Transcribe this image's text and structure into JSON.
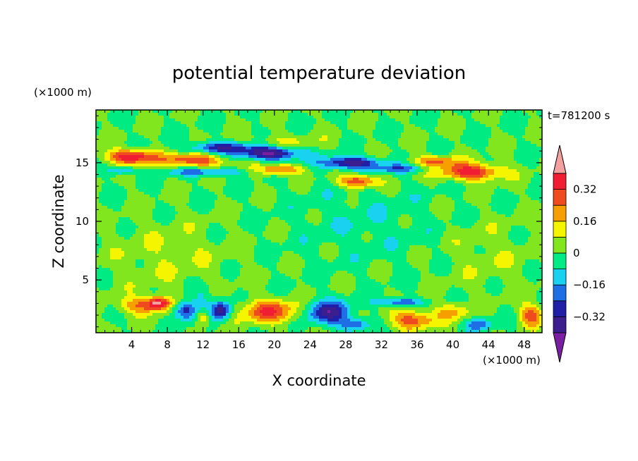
{
  "chart_data": {
    "type": "heatmap",
    "title": "potential temperature deviation",
    "xlabel": "X coordinate",
    "ylabel": "Z coordinate",
    "x_unit": "(×1000 m)",
    "y_unit": "(×1000 m)",
    "time_label": "t=781200 s",
    "xlim": [
      0,
      50
    ],
    "ylim": [
      0.5,
      19.5
    ],
    "x_ticks": [
      4,
      8,
      12,
      16,
      20,
      24,
      28,
      32,
      36,
      40,
      44,
      48
    ],
    "y_ticks": [
      5,
      10,
      15
    ],
    "colorbar": {
      "levels": [
        -0.4,
        -0.32,
        -0.24,
        -0.16,
        -0.08,
        0,
        0.08,
        0.16,
        0.24,
        0.32,
        0.4
      ],
      "tick_labels": [
        "0.32",
        "0.16",
        "0",
        "−0.16",
        "−0.32"
      ],
      "tick_values": [
        0.32,
        0.16,
        0,
        -0.16,
        -0.32
      ],
      "colors": [
        "#7a1fa2",
        "#3c1e8f",
        "#1f1fa8",
        "#1e6ee6",
        "#19d2f0",
        "#00eb82",
        "#82e61e",
        "#f5f500",
        "#f5a000",
        "#f04b1e",
        "#f01e32",
        "#f5a0a0"
      ],
      "extend": "both"
    },
    "features": [
      {
        "x": 4,
        "z": 15.5,
        "sx": 2.8,
        "sz": 0.6,
        "amp": 0.42
      },
      {
        "x": 11,
        "z": 15.2,
        "sx": 3.2,
        "sz": 0.55,
        "amp": 0.34
      },
      {
        "x": 20.5,
        "z": 14.4,
        "sx": 2.5,
        "sz": 0.45,
        "amp": 0.3
      },
      {
        "x": 29.5,
        "z": 13.4,
        "sx": 2.2,
        "sz": 0.55,
        "amp": 0.36
      },
      {
        "x": 42,
        "z": 14.2,
        "sx": 3.5,
        "sz": 0.7,
        "amp": 0.38
      },
      {
        "x": 38,
        "z": 15.1,
        "sx": 2.5,
        "sz": 0.5,
        "amp": 0.26
      },
      {
        "x": 14,
        "z": 16.3,
        "sx": 3.5,
        "sz": 0.5,
        "amp": -0.3
      },
      {
        "x": 19.5,
        "z": 15.8,
        "sx": 3.2,
        "sz": 0.55,
        "amp": -0.42
      },
      {
        "x": 28.5,
        "z": 15.0,
        "sx": 3.2,
        "sz": 0.5,
        "amp": -0.38
      },
      {
        "x": 34,
        "z": 14.5,
        "sx": 3.5,
        "sz": 0.35,
        "amp": -0.2
      },
      {
        "x": 3,
        "z": 14.3,
        "sx": 1.6,
        "sz": 0.35,
        "amp": -0.2
      },
      {
        "x": 12,
        "z": 14.2,
        "sx": 4.5,
        "sz": 0.35,
        "amp": -0.2
      },
      {
        "x": 21,
        "z": 16.8,
        "sx": 4.5,
        "sz": 0.6,
        "amp": 0.09
      },
      {
        "x": 7,
        "z": 3.0,
        "sx": 1.4,
        "sz": 0.6,
        "amp": 0.42
      },
      {
        "x": 4.5,
        "z": 2.8,
        "sx": 2.0,
        "sz": 0.7,
        "amp": 0.22
      },
      {
        "x": 10,
        "z": 2.4,
        "sx": 1.3,
        "sz": 0.8,
        "amp": -0.32
      },
      {
        "x": 14,
        "z": 2.4,
        "sx": 1.1,
        "sz": 0.8,
        "amp": -0.4
      },
      {
        "x": 12,
        "z": 1.8,
        "sx": 0.8,
        "sz": 0.6,
        "amp": 0.2
      },
      {
        "x": 19.5,
        "z": 2.3,
        "sx": 3.5,
        "sz": 1.0,
        "amp": 0.3
      },
      {
        "x": 26,
        "z": 2.2,
        "sx": 2.5,
        "sz": 1.0,
        "amp": -0.36
      },
      {
        "x": 29,
        "z": 1.2,
        "sx": 1.5,
        "sz": 0.5,
        "amp": -0.24
      },
      {
        "x": 35.5,
        "z": 1.6,
        "sx": 2.5,
        "sz": 0.8,
        "amp": 0.3
      },
      {
        "x": 34,
        "z": 3.1,
        "sx": 2.5,
        "sz": 0.35,
        "amp": -0.26
      },
      {
        "x": 40,
        "z": 2.3,
        "sx": 1.8,
        "sz": 0.7,
        "amp": 0.18
      },
      {
        "x": 43,
        "z": 1.2,
        "sx": 1.4,
        "sz": 0.5,
        "amp": -0.22
      },
      {
        "x": 48.8,
        "z": 2.0,
        "sx": 1.2,
        "sz": 0.9,
        "amp": 0.3
      },
      {
        "x": 12,
        "z": 3.6,
        "sx": 1.2,
        "sz": 1.0,
        "amp": -0.1
      },
      {
        "x": 30,
        "z": 10,
        "sx": 8,
        "sz": 3.5,
        "amp": -0.06
      },
      {
        "x": 8,
        "z": 7,
        "sx": 7,
        "sz": 3.0,
        "amp": 0.07
      },
      {
        "x": 44,
        "z": 7,
        "sx": 5,
        "sz": 3.0,
        "amp": 0.06
      }
    ]
  }
}
